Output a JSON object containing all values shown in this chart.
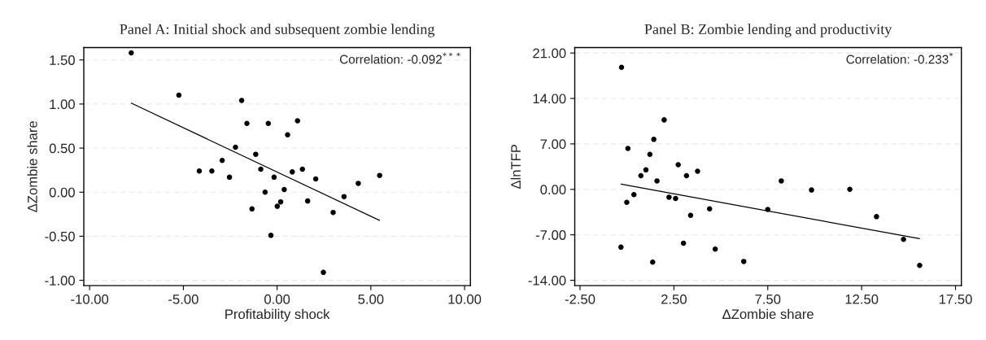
{
  "chart_data": [
    {
      "type": "scatter",
      "title": "Panel A: Initial shock and subsequent zombie lending",
      "xlabel": "Profitability shock",
      "ylabel": "ΔZombie share",
      "annotations": [
        "Correlation: -0.092$^{***}$"
      ],
      "grid": "y",
      "xlim": [
        -10.31,
        10.31
      ],
      "ylim": [
        -1.06,
        1.64
      ],
      "xticks": [
        {
          "value": -10,
          "label": "-10.00"
        },
        {
          "value": -5,
          "label": "-5.00"
        },
        {
          "value": 0,
          "label": "0.00"
        },
        {
          "value": 5,
          "label": "5.00"
        },
        {
          "value": 10,
          "label": "10.00"
        }
      ],
      "yticks": [
        {
          "value": -1,
          "label": "-1.00"
        },
        {
          "value": -0.5,
          "label": "-0.50"
        },
        {
          "value": 0,
          "label": "0.00"
        },
        {
          "value": 0.5,
          "label": "0.50"
        },
        {
          "value": 1,
          "label": "1.00"
        },
        {
          "value": 1.5,
          "label": "1.50"
        }
      ],
      "series": [
        {
          "color": "#000000",
          "marker": "circle",
          "x": [
            -7.78,
            -5.24,
            -1.89,
            -1.61,
            -0.47,
            1.09,
            0.56,
            -2.22,
            -1.14,
            -2.93,
            -4.15,
            -3.48,
            -2.54,
            -0.87,
            -0.16,
            0.81,
            1.35,
            2.06,
            4.33,
            5.47,
            -0.64,
            0.38,
            3.57,
            1.63,
            0.19,
            0.01,
            -1.34,
            2.99,
            -0.33,
            2.47
          ],
          "values": [
            1.58,
            1.1,
            1.04,
            0.78,
            0.78,
            0.81,
            0.65,
            0.51,
            0.43,
            0.36,
            0.24,
            0.24,
            0.17,
            0.26,
            0.17,
            0.23,
            0.26,
            0.15,
            0.1,
            0.19,
            0.0,
            0.03,
            -0.05,
            -0.1,
            -0.11,
            -0.16,
            -0.19,
            -0.23,
            -0.49,
            -0.91
          ]
        },
        {
          "type": "line",
          "color": "#000000",
          "x": [
            -7.78,
            5.46
          ],
          "values": [
            1.01,
            -0.32
          ]
        }
      ]
    },
    {
      "type": "scatter",
      "title": "Panel B: Zombie lending and productivity",
      "xlabel": "ΔZombie share",
      "ylabel": "ΔlnTFP",
      "annotations": [
        "Correlation: -0.233$^{*}$"
      ],
      "grid": "y",
      "xlim": [
        -2.78,
        17.81
      ],
      "ylim": [
        -14.82,
        21.83
      ],
      "xticks": [
        {
          "value": -2.5,
          "label": "-2.50"
        },
        {
          "value": 2.5,
          "label": "2.50"
        },
        {
          "value": 7.5,
          "label": "7.50"
        },
        {
          "value": 12.5,
          "label": "12.50"
        },
        {
          "value": 17.5,
          "label": "17.50"
        }
      ],
      "yticks": [
        {
          "value": -14,
          "label": "-14.00"
        },
        {
          "value": -7,
          "label": "-7.00"
        },
        {
          "value": 0,
          "label": "0.00"
        },
        {
          "value": 7,
          "label": "7.00"
        },
        {
          "value": 14,
          "label": "14.00"
        },
        {
          "value": 21,
          "label": "21.00"
        }
      ],
      "series": [
        {
          "color": "#000000",
          "marker": "circle",
          "x": [
            -0.29,
            1.98,
            1.43,
            0.05,
            1.22,
            2.73,
            1.01,
            3.76,
            0.74,
            3.17,
            1.6,
            8.22,
            9.83,
            11.87,
            0.37,
            -0.01,
            2.24,
            2.59,
            4.4,
            7.5,
            3.39,
            13.29,
            3.01,
            14.73,
            -0.32,
            4.7,
            1.37,
            6.22,
            15.59
          ],
          "values": [
            18.8,
            10.7,
            7.7,
            6.3,
            5.4,
            3.8,
            3.0,
            2.8,
            2.1,
            2.1,
            1.3,
            1.3,
            -0.1,
            0.0,
            -0.8,
            -2.0,
            -1.2,
            -1.4,
            -3.0,
            -3.1,
            -4.0,
            -4.2,
            -8.3,
            -7.7,
            -8.9,
            -9.2,
            -11.2,
            -11.1,
            -11.7
          ]
        },
        {
          "type": "line",
          "color": "#000000",
          "x": [
            -0.31,
            15.58
          ],
          "values": [
            0.8,
            -7.6
          ]
        }
      ]
    }
  ]
}
